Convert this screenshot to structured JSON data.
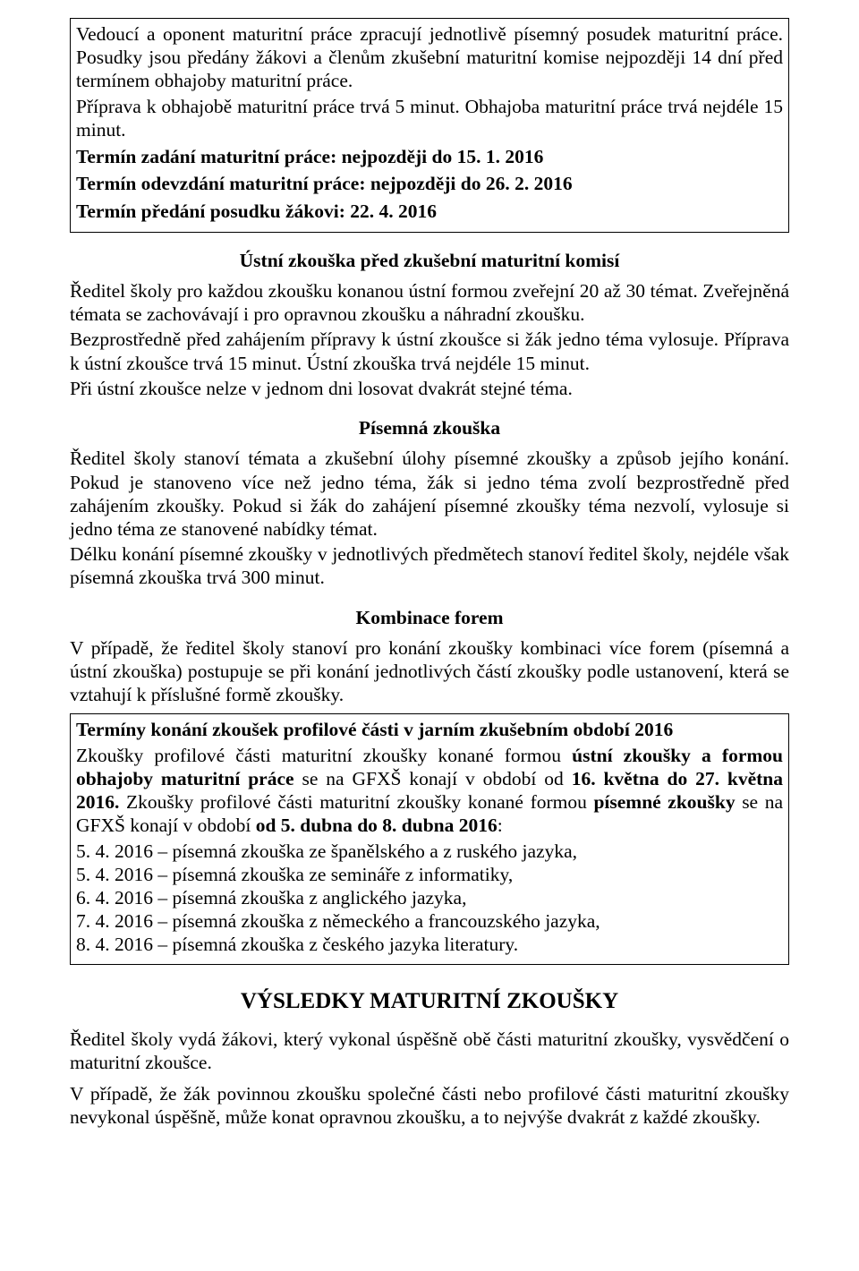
{
  "box1": {
    "p1": "Vedoucí a oponent maturitní práce zpracují jednotlivě písemný posudek maturitní práce. Posudky jsou předány žákovi a členům zkušební maturitní komise nejpozději 14 dní před termínem obhajoby maturitní práce.",
    "p2": "Příprava k obhajobě maturitní práce trvá 5 minut. Obhajoba maturitní práce trvá nejdéle 15 minut.",
    "t1": "Termín zadání maturitní práce: nejpozději do 15. 1. 2016",
    "t2": "Termín odevzdání maturitní práce: nejpozději do 26. 2. 2016",
    "t3": "Termín předání posudku žákovi: 22. 4. 2016"
  },
  "ustni": {
    "heading": "Ústní zkouška před zkušební maturitní komisí",
    "p1": "Ředitel školy pro každou zkoušku konanou ústní formou zveřejní 20 až 30 témat. Zveřejněná témata se zachovávají i pro opravnou zkoušku a náhradní zkoušku.",
    "p2": "Bezprostředně před zahájením přípravy k ústní zkoušce si žák jedno téma vylosuje. Příprava k ústní zkoušce trvá 15 minut. Ústní zkouška trvá nejdéle 15 minut.",
    "p3": "Při ústní zkoušce nelze v jednom dni losovat dvakrát stejné téma."
  },
  "pisemna": {
    "heading": "Písemná zkouška",
    "p1": "Ředitel školy stanoví témata a zkušební úlohy písemné zkoušky a způsob jejího konání. Pokud je stanoveno více než jedno téma, žák si jedno téma zvolí bezprostředně před zahájením zkoušky. Pokud si žák do zahájení písemné zkoušky téma nezvolí, vylosuje si jedno téma ze stanovené nabídky témat.",
    "p2": "Délku konání písemné zkoušky v jednotlivých předmětech stanoví ředitel školy, nejdéle však písemná zkouška trvá 300 minut."
  },
  "kombinace": {
    "heading": "Kombinace forem",
    "p1": "V případě, že ředitel školy stanoví pro konání zkoušky kombinaci více forem (písemná a ústní zkouška) postupuje se při konání jednotlivých částí zkoušky podle ustanovení, která se vztahují k příslušné formě zkoušky."
  },
  "box2": {
    "title": "Termíny konání zkoušek profilové části v jarním zkušebním období 2016",
    "run1a": "Zkoušky profilové části maturitní zkoušky konané formou ",
    "run1b": "ústní zkoušky a formou obhajoby maturitní práce",
    "run1c": " se na GFXŠ konají v období od ",
    "run1d": "16. května do 27. května 2016.",
    "run1e": " Zkoušky profilové části maturitní zkoušky konané formou ",
    "run1f": "písemné zkoušky",
    "run1g": " se na GFXŠ konají v období ",
    "run1h": "od 5. dubna do 8. dubna 2016",
    "run1i": ":",
    "l1": "5. 4. 2016 – písemná zkouška ze španělského a z ruského jazyka,",
    "l2": "5. 4. 2016 – písemná zkouška ze semináře z informatiky,",
    "l3": "6. 4. 2016 – písemná zkouška z anglického jazyka,",
    "l4": "7. 4. 2016 – písemná zkouška z německého a francouzského jazyka,",
    "l5": "8. 4. 2016 – písemná zkouška z českého jazyka literatury."
  },
  "vysledky": {
    "heading": "VÝSLEDKY MATURITNÍ ZKOUŠKY",
    "p1": "Ředitel školy vydá žákovi, který vykonal úspěšně obě části maturitní zkoušky, vysvědčení o maturitní zkoušce.",
    "p2": "V případě, že žák povinnou zkoušku společné části nebo profilové části maturitní zkoušky nevykonal úspěšně, může konat opravnou zkoušku, a to nejvýše dvakrát z každé zkoušky."
  }
}
